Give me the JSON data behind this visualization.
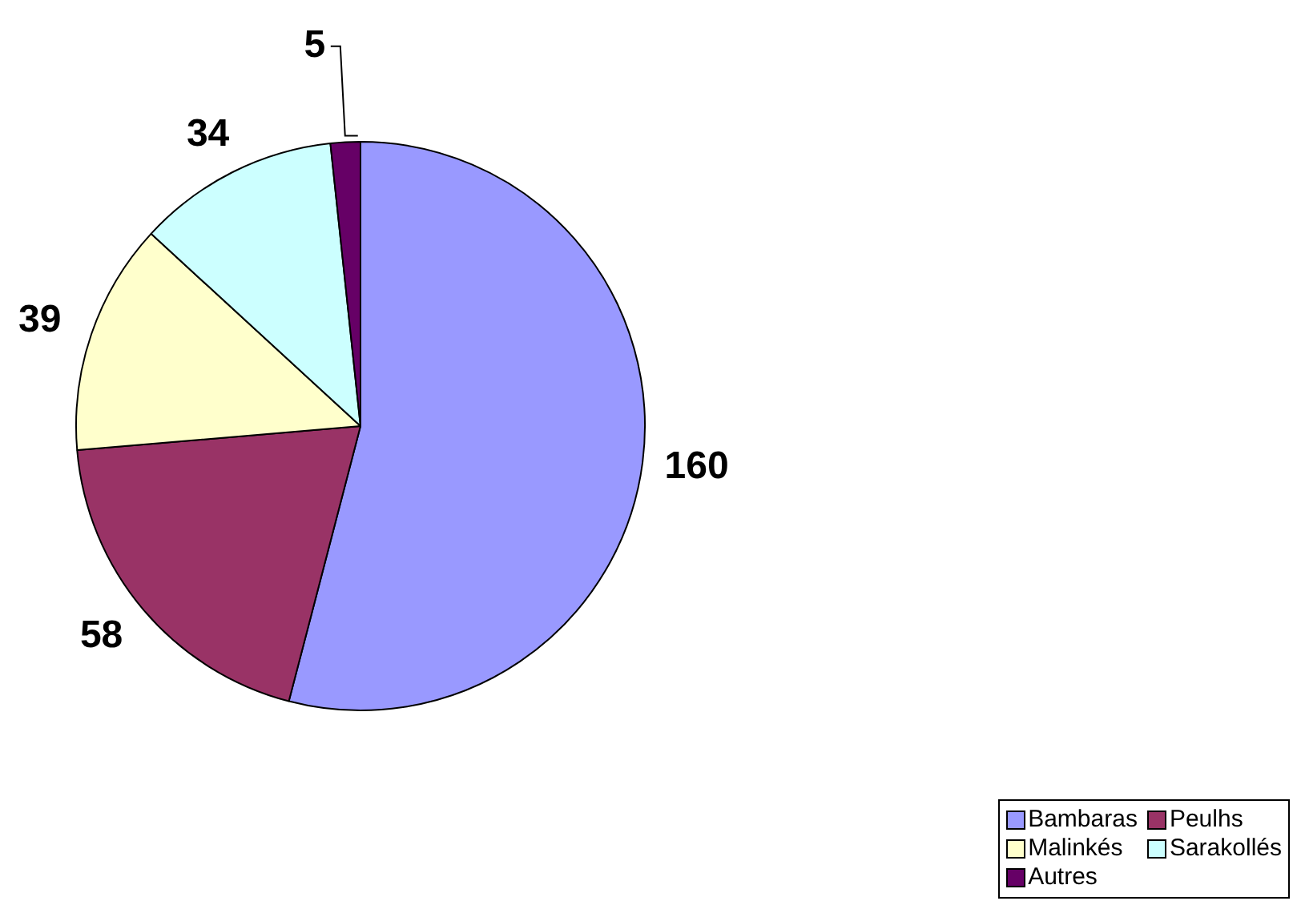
{
  "chart_data": {
    "type": "pie",
    "categories": [
      "Bambaras",
      "Peulhs",
      "Malinkés",
      "Sarakollés",
      "Autres"
    ],
    "values": [
      160,
      58,
      39,
      34,
      5
    ],
    "colors": [
      "#9999ff",
      "#993366",
      "#ffffcc",
      "#ccffff",
      "#660066"
    ],
    "data_labels": true,
    "legend": "bottom right"
  }
}
